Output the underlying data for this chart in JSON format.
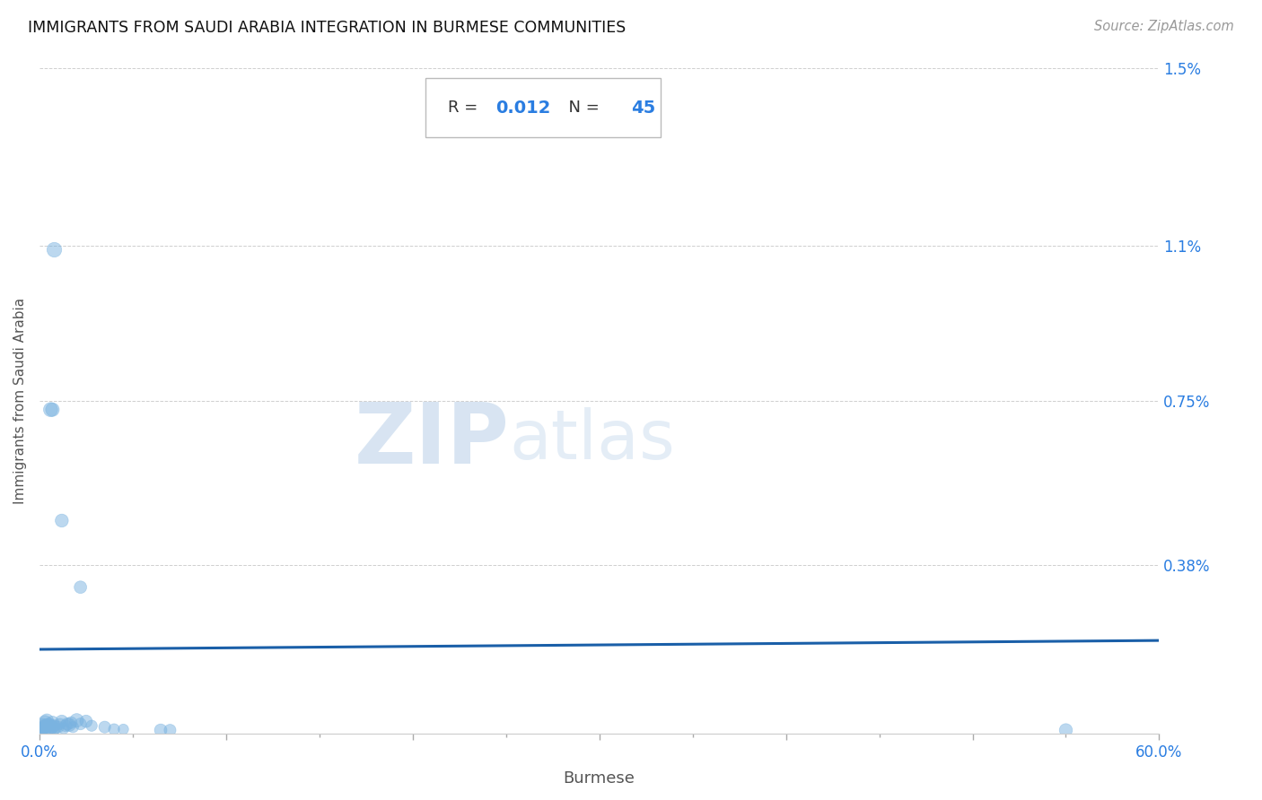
{
  "title": "IMMIGRANTS FROM SAUDI ARABIA INTEGRATION IN BURMESE COMMUNITIES",
  "source": "Source: ZipAtlas.com",
  "xlabel": "Burmese",
  "ylabel": "Immigrants from Saudi Arabia",
  "r_value": "0.012",
  "n_value": "45",
  "xlim": [
    0,
    0.6
  ],
  "ylim": [
    0,
    0.015
  ],
  "xtick_positions": [
    0.0,
    0.1,
    0.2,
    0.3,
    0.4,
    0.5,
    0.6
  ],
  "xticklabels": [
    "0.0%",
    "",
    "",
    "",
    "",
    "",
    "60.0%"
  ],
  "ytick_positions": [
    0.0,
    0.0038,
    0.0075,
    0.011,
    0.015
  ],
  "ytick_labels": [
    "",
    "0.38%",
    "0.75%",
    "1.1%",
    "1.5%"
  ],
  "scatter_color": "#7ab3e0",
  "scatter_alpha": 0.5,
  "line_color": "#1a5fa8",
  "background_color": "#ffffff",
  "watermark_zip": "ZIP",
  "watermark_atlas": "atlas",
  "grid_color": "#bbbbbb",
  "points": [
    [
      0.0005,
      5e-05
    ],
    [
      0.0008,
      0.0001
    ],
    [
      0.001,
      8e-05
    ],
    [
      0.0012,
      0.00012
    ],
    [
      0.0015,
      0.0002
    ],
    [
      0.002,
      0.00015
    ],
    [
      0.0025,
      0.00018
    ],
    [
      0.003,
      0.0001
    ],
    [
      0.003,
      0.00025
    ],
    [
      0.0035,
      0.0002
    ],
    [
      0.004,
      0.00015
    ],
    [
      0.004,
      0.0003
    ],
    [
      0.005,
      0.00012
    ],
    [
      0.005,
      0.0002
    ],
    [
      0.006,
      0.0002
    ],
    [
      0.006,
      8e-05
    ],
    [
      0.007,
      0.00015
    ],
    [
      0.007,
      0.00025
    ],
    [
      0.008,
      0.00018
    ],
    [
      0.008,
      0.0001
    ],
    [
      0.009,
      0.00012
    ],
    [
      0.01,
      0.00015
    ],
    [
      0.011,
      0.00022
    ],
    [
      0.012,
      0.00028
    ],
    [
      0.013,
      0.00012
    ],
    [
      0.014,
      0.00018
    ],
    [
      0.015,
      0.00022
    ],
    [
      0.016,
      0.0002
    ],
    [
      0.017,
      0.00025
    ],
    [
      0.018,
      0.00015
    ],
    [
      0.02,
      0.0003
    ],
    [
      0.022,
      0.00022
    ],
    [
      0.025,
      0.00028
    ],
    [
      0.028,
      0.00018
    ],
    [
      0.035,
      0.00015
    ],
    [
      0.04,
      0.0001
    ],
    [
      0.045,
      0.0001
    ],
    [
      0.065,
      8e-05
    ],
    [
      0.07,
      8e-05
    ],
    [
      0.55,
      8e-05
    ],
    [
      0.008,
      0.0109
    ],
    [
      0.006,
      0.0073
    ],
    [
      0.007,
      0.0073
    ],
    [
      0.012,
      0.0048
    ],
    [
      0.022,
      0.0033
    ]
  ],
  "point_sizes": [
    120,
    100,
    130,
    90,
    110,
    80,
    90,
    100,
    130,
    90,
    80,
    110,
    100,
    120,
    90,
    80,
    100,
    110,
    90,
    80,
    70,
    90,
    80,
    100,
    80,
    90,
    100,
    110,
    90,
    80,
    120,
    90,
    100,
    80,
    90,
    80,
    70,
    100,
    90,
    110,
    140,
    130,
    120,
    110,
    100
  ],
  "line_y_start": 0.0019,
  "line_y_end": 0.0021
}
